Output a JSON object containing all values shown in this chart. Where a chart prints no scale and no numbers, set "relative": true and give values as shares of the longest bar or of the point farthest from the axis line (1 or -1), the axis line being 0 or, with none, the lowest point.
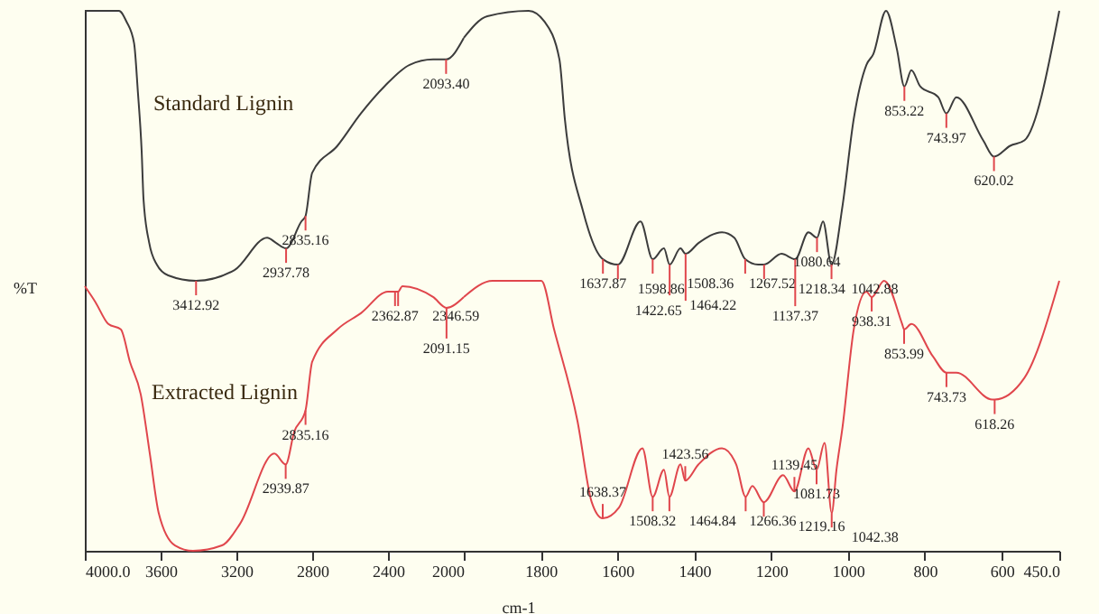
{
  "chart_data": [
    {
      "type": "line",
      "relative": true,
      "ylabel": "%T",
      "grid": false,
      "xlim": [
        4000,
        2000
      ],
      "xticks": [
        {
          "value": 4000,
          "label": "4000.0"
        },
        3600,
        3200,
        2800,
        2400,
        2000
      ],
      "series": [
        {
          "name": "Standard Lignin",
          "color": "#3c3c3c",
          "x": [
            4000,
            3820,
            3780,
            3740,
            3720,
            3700,
            3690,
            3660,
            3620,
            3560,
            3412.92,
            3210,
            3038,
            2990,
            2937.78,
            2857,
            2835.16,
            2800,
            2667,
            2543,
            2419,
            2286,
            2162,
            2093.4,
            2000
          ],
          "values": [
            1.0,
            1.0,
            0.98,
            0.94,
            0.85,
            0.74,
            0.65,
            0.57,
            0.53,
            0.51,
            0.5,
            0.52,
            0.58,
            0.57,
            0.56,
            0.61,
            0.62,
            0.7,
            0.75,
            0.81,
            0.86,
            0.9,
            0.91,
            0.91,
            0.95
          ]
        },
        {
          "name": "Extracted Lignin",
          "color": "#e0464c",
          "x": [
            4000,
            3943,
            3876,
            3810,
            3762,
            3705,
            3657,
            3610,
            3524,
            3429,
            3276,
            3181,
            3000,
            2939.87,
            2895,
            2835.16,
            2800,
            2667,
            2543,
            2400,
            2362.87,
            2346.59,
            2324,
            2162,
            2091.15,
            2000
          ],
          "values": [
            0.49,
            0.46,
            0.42,
            0.41,
            0.35,
            0.29,
            0.18,
            0.07,
            0.01,
            0,
            0.01,
            0.05,
            0.18,
            0.16,
            0.22,
            0.26,
            0.35,
            0.41,
            0.44,
            0.48,
            0.48,
            0.48,
            0.49,
            0.47,
            0.45,
            0.47
          ]
        }
      ],
      "annotations": [
        {
          "text": "3412.92",
          "x": 3412.92,
          "y": 0.5
        },
        {
          "text": "2937.78",
          "x": 2937.78,
          "y": 0.56
        },
        {
          "text": "2835.16",
          "x": 2835.16,
          "y": 0.62
        },
        {
          "text": "2093.40",
          "x": 2093.4,
          "y": 0.91
        },
        {
          "text": "2939.87",
          "x": 2939.87,
          "y": 0.16
        },
        {
          "text": "2835.16",
          "x": 2835.16,
          "y": 0.26
        },
        {
          "text": "2362.87",
          "x": 2362.87,
          "y": 0.48
        },
        {
          "text": "2346.59",
          "x": 2346.59,
          "y": 0.48
        },
        {
          "text": "2091.15",
          "x": 2091.15,
          "y": 0.45
        }
      ]
    },
    {
      "type": "line",
      "relative": true,
      "xlabel": "cm-1",
      "grid": false,
      "xlim": [
        2000,
        450
      ],
      "xticks": [
        1800,
        1600,
        1400,
        1200,
        1000,
        800,
        600,
        {
          "value": 450,
          "label": "450.0"
        }
      ],
      "series": [
        {
          "color": "#3c3c3c",
          "x": [
            2000,
            1939,
            1831,
            1790,
            1751,
            1737,
            1690,
            1637.87,
            1598.86,
            1540,
            1508.36,
            1479,
            1464.22,
            1436,
            1422.65,
            1389,
            1328,
            1296,
            1267.52,
            1234,
            1218.34,
            1173,
            1137.37,
            1103,
            1080.64,
            1065,
            1042.88,
            1014,
            985,
            952,
            934,
            901,
            873,
            853.22,
            835,
            812,
            765,
            743.97,
            718,
            648,
            620.02,
            578,
            541,
            450
          ],
          "values": [
            0.95,
            0.99,
            1.0,
            0.98,
            0.91,
            0.8,
            0.63,
            0.54,
            0.53,
            0.61,
            0.54,
            0.56,
            0.53,
            0.56,
            0.55,
            0.57,
            0.59,
            0.58,
            0.54,
            0.53,
            0.53,
            0.55,
            0.54,
            0.59,
            0.58,
            0.61,
            0.53,
            0.64,
            0.8,
            0.9,
            0.92,
            1.0,
            0.93,
            0.86,
            0.89,
            0.86,
            0.84,
            0.81,
            0.84,
            0.76,
            0.73,
            0.75,
            0.76,
            1.0
          ]
        },
        {
          "color": "#e0464c",
          "x": [
            2000,
            1925,
            1798,
            1765,
            1704,
            1667,
            1638.37,
            1596,
            1535,
            1508.32,
            1479,
            1464.84,
            1436,
            1423.56,
            1389,
            1328,
            1291,
            1266.36,
            1249,
            1219.16,
            1169,
            1139.45,
            1103,
            1081.73,
            1061,
            1042.38,
            1030,
            1014,
            985,
            952,
            938.31,
            906,
            859,
            853.99,
            835,
            779,
            743.73,
            718,
            624,
            618.26,
            541,
            450
          ],
          "values": [
            0.47,
            0.5,
            0.5,
            0.41,
            0.24,
            0.09,
            0.06,
            0.08,
            0.19,
            0.1,
            0.15,
            0.1,
            0.16,
            0.13,
            0.16,
            0.19,
            0.16,
            0.1,
            0.12,
            0.09,
            0.14,
            0.11,
            0.19,
            0.15,
            0.2,
            0.07,
            0.15,
            0.23,
            0.41,
            0.48,
            0.47,
            0.5,
            0.42,
            0.41,
            0.42,
            0.36,
            0.33,
            0.33,
            0.28,
            0.28,
            0.32,
            0.5
          ]
        }
      ],
      "annotations": [
        {
          "text": "1637.87",
          "x": 1637.87,
          "y": 0.54
        },
        {
          "text": "1598.86",
          "x": 1598.86,
          "y": 0.53
        },
        {
          "text": "1508.36",
          "x": 1508.36,
          "y": 0.54
        },
        {
          "text": "1464.22",
          "x": 1464.22,
          "y": 0.53
        },
        {
          "text": "1422.65",
          "x": 1422.65,
          "y": 0.55
        },
        {
          "text": "1267.52",
          "x": 1267.52,
          "y": 0.54
        },
        {
          "text": "1218.34",
          "x": 1218.34,
          "y": 0.53
        },
        {
          "text": "1137.37",
          "x": 1137.37,
          "y": 0.54
        },
        {
          "text": "1080.64",
          "x": 1080.64,
          "y": 0.58
        },
        {
          "text": "1042.88",
          "x": 1042.88,
          "y": 0.53
        },
        {
          "text": "853.22",
          "x": 853.22,
          "y": 0.86
        },
        {
          "text": "743.97",
          "x": 743.97,
          "y": 0.81
        },
        {
          "text": "620.02",
          "x": 620.02,
          "y": 0.73
        },
        {
          "text": "1638.37",
          "x": 1638.37,
          "y": 0.06
        },
        {
          "text": "1508.32",
          "x": 1508.32,
          "y": 0.1
        },
        {
          "text": "1464.84",
          "x": 1464.84,
          "y": 0.1
        },
        {
          "text": "1423.56",
          "x": 1423.56,
          "y": 0.13
        },
        {
          "text": "1266.36",
          "x": 1266.36,
          "y": 0.1
        },
        {
          "text": "1219.16",
          "x": 1219.16,
          "y": 0.09
        },
        {
          "text": "1139.45",
          "x": 1139.45,
          "y": 0.11
        },
        {
          "text": "1081.73",
          "x": 1081.73,
          "y": 0.15
        },
        {
          "text": "1042.38",
          "x": 1042.38,
          "y": 0.07
        },
        {
          "text": "938.31",
          "x": 938.31,
          "y": 0.47
        },
        {
          "text": "853.99",
          "x": 853.99,
          "y": 0.41
        },
        {
          "text": "743.73",
          "x": 743.73,
          "y": 0.33
        },
        {
          "text": "618.26",
          "x": 618.26,
          "y": 0.28
        }
      ]
    }
  ]
}
